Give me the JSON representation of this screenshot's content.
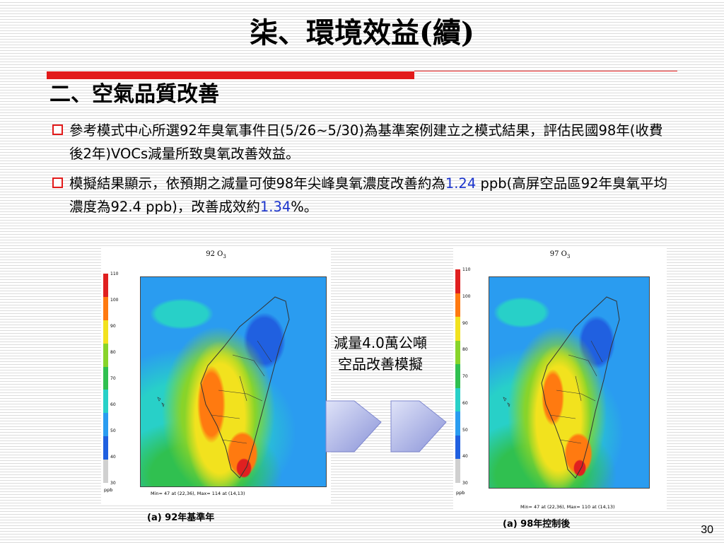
{
  "slide": {
    "title": "柒、環境效益(續)",
    "section_title": "二、空氣品質改善",
    "bullets": [
      {
        "a": "參考模式中心所選92年臭氧事件日(5/26~5/30)為基準案例建立之模式結果，評估民國98年(收費後2年)VOCs減量所致臭氧改善效益。"
      },
      {
        "a": "模擬結果顯示，依預期之減量可使98年尖峰臭氧濃度改善約為",
        "b": "1.24",
        "c": " ppb(高屏空品區92年臭氧平均濃度為92.4 ppb)，改善成效約",
        "d": "1.34",
        "e": "%。"
      }
    ],
    "middle_text_line1": "減量4.0萬公噸",
    "middle_text_line2": "空品改善模擬",
    "page_number": "30"
  },
  "maps": [
    {
      "title": "92 O",
      "sub": "3",
      "minmax": "Min=   47 at (22,36), Max=   114 at (14,13)",
      "caption": "(a) 92年基準年",
      "unit": "ppb",
      "ticks": [
        "110",
        "100",
        "90",
        "80",
        "70",
        "60",
        "50",
        "40",
        "30"
      ]
    },
    {
      "title": "97 O",
      "sub": "3",
      "minmax": "Min=   47 at (22,36), Max=   110 at (14,13)",
      "caption": "(a) 98年控制後",
      "unit": "ppb",
      "ticks": [
        "110",
        "100",
        "90",
        "80",
        "70",
        "60",
        "50",
        "40",
        "30"
      ]
    }
  ],
  "colors": {
    "accent_red": "#e21a1a",
    "highlight_blue": "#1a33cc",
    "legend": [
      "#e02020",
      "#ff7a10",
      "#f2e21e",
      "#88d42a",
      "#30c050",
      "#28d0c8",
      "#2a9cf0",
      "#2060e0",
      "#d0d0d0"
    ]
  }
}
